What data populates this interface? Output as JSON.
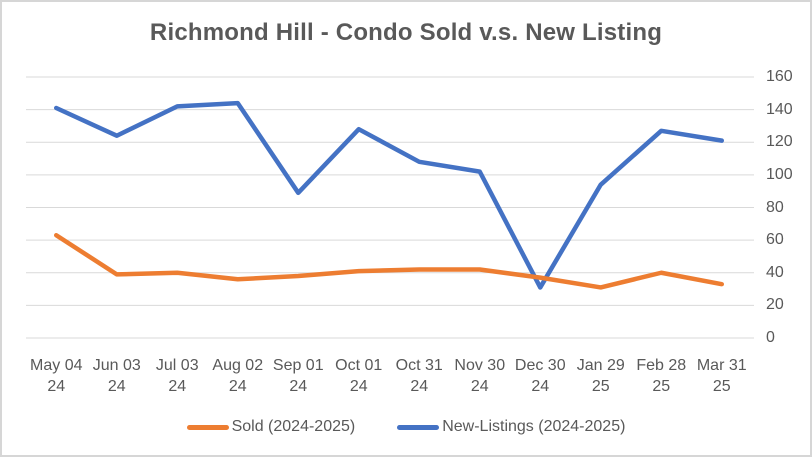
{
  "window": {
    "background": "#ffffff",
    "border_color": "#d6d6d6",
    "text_color": "#595959"
  },
  "chart_data": {
    "type": "line",
    "title": "Richmond Hill - Condo Sold v.s. New Listing",
    "categories": [
      [
        "May 04",
        "24"
      ],
      [
        "Jun 03",
        "24"
      ],
      [
        "Jul 03",
        "24"
      ],
      [
        "Aug 02",
        "24"
      ],
      [
        "Sep 01",
        "24"
      ],
      [
        "Oct 01",
        "24"
      ],
      [
        "Oct 31",
        "24"
      ],
      [
        "Nov 30",
        "24"
      ],
      [
        "Dec 30",
        "24"
      ],
      [
        "Jan 29",
        "25"
      ],
      [
        "Feb 28",
        "25"
      ],
      [
        "Mar 31",
        "25"
      ]
    ],
    "series": [
      {
        "id": "sold",
        "name": "Sold (2024-2025)",
        "color": "#ED7D31",
        "values": [
          63,
          39,
          40,
          36,
          38,
          41,
          42,
          42,
          37,
          31,
          40,
          33
        ]
      },
      {
        "id": "new-listings",
        "name": "New-Listings (2024-2025)",
        "color": "#4472C4",
        "values": [
          141,
          124,
          142,
          144,
          89,
          128,
          108,
          102,
          31,
          94,
          127,
          121
        ]
      }
    ],
    "y_axis": {
      "min": 0,
      "max": 160,
      "step": 20,
      "side": "right",
      "tick_labels": [
        "0",
        "20",
        "40",
        "60",
        "80",
        "100",
        "120",
        "140",
        "160"
      ]
    },
    "grid": {
      "show": true,
      "color": "#D9D9D9"
    },
    "legend_position": "bottom",
    "line_width": 4.5,
    "title_color": "#595959",
    "axis_text_color": "#595959"
  }
}
